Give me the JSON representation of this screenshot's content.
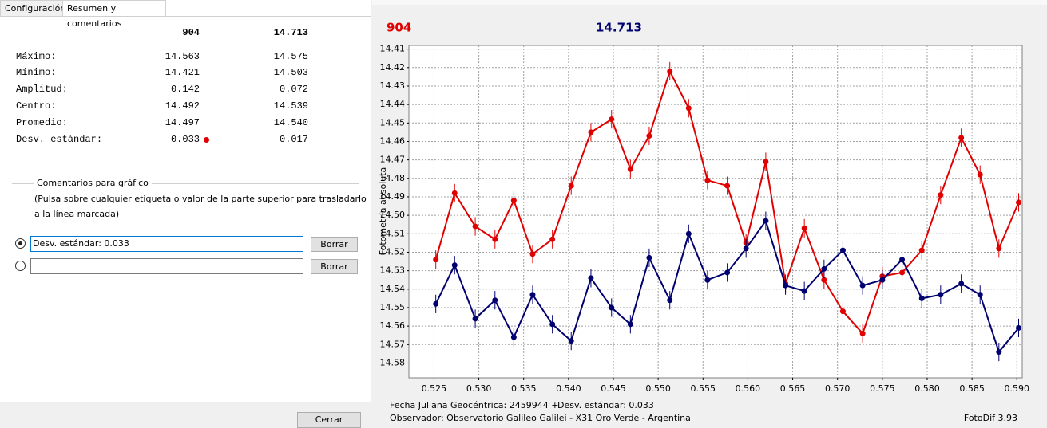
{
  "tabs": [
    "Configuración",
    "Resumen y comentarios"
  ],
  "summary": {
    "headers": [
      "904",
      "14.713"
    ],
    "rows": [
      {
        "label": "Máximo:",
        "values": [
          "14.563",
          "14.575"
        ]
      },
      {
        "label": "Mínimo:",
        "values": [
          "14.421",
          "14.503"
        ]
      },
      {
        "label": "Amplitud:",
        "values": [
          "0.142",
          "0.072"
        ]
      },
      {
        "label": "Centro:",
        "values": [
          "14.492",
          "14.539"
        ]
      },
      {
        "label": "Promedio:",
        "values": [
          "14.497",
          "14.540"
        ]
      },
      {
        "label": "Desv. estándar:",
        "values": [
          "0.033",
          "0.017"
        ]
      }
    ]
  },
  "comments": {
    "title": "Comentarios para gráfico",
    "help": [
      "(Pulsa sobre cualquier etiqueta o valor de la parte superior para trasladarlo",
      "a la línea marcada)"
    ],
    "lines": [
      {
        "text": "Desv. estándar: 0.033",
        "button": "Borrar"
      },
      {
        "button": "Borrar"
      }
    ]
  },
  "close_button": "Cerrar",
  "chart_data": {
    "type": "line",
    "y_label": "Fotometría absoluta",
    "footer": [
      "Fecha Juliana Geocéntrica: 2459944 +",
      "Desv. estándar: 0.033",
      "Observador: Observatorio Galileo Galilei - X31 Oro Verde - Argentina",
      "FotoDif 3.93"
    ],
    "x": [
      0.5252,
      0.5273,
      0.5296,
      0.5318,
      0.5339,
      0.536,
      0.5382,
      0.5403,
      0.5425,
      0.5448,
      0.5469,
      0.549,
      0.5513,
      0.5534,
      0.5555,
      0.5577,
      0.5598,
      0.562,
      0.5642,
      0.5663,
      0.5685,
      0.5706,
      0.5728,
      0.575,
      0.5772,
      0.5794,
      0.5815,
      0.5838,
      0.5859,
      0.588,
      0.5902
    ],
    "series": [
      {
        "name": "904",
        "color": "#e00000",
        "error": 0.005,
        "values": [
          14.524,
          14.488,
          14.506,
          14.513,
          14.492,
          14.521,
          14.513,
          14.484,
          14.455,
          14.448,
          14.475,
          14.457,
          14.422,
          14.442,
          14.481,
          14.484,
          14.515,
          14.471,
          14.537,
          14.507,
          14.535,
          14.552,
          14.564,
          14.533,
          14.531,
          14.519,
          14.489,
          14.458,
          14.478,
          14.518,
          14.493
        ]
      },
      {
        "name": "14.713",
        "color": "#000070",
        "error": 0.005,
        "values": [
          14.548,
          14.527,
          14.556,
          14.546,
          14.566,
          14.543,
          14.559,
          14.568,
          14.534,
          14.55,
          14.559,
          14.523,
          14.546,
          14.51,
          14.535,
          14.531,
          14.518,
          14.503,
          14.538,
          14.541,
          14.529,
          14.519,
          14.538,
          14.535,
          14.524,
          14.545,
          14.543,
          14.537,
          14.543,
          14.574,
          14.561
        ]
      }
    ],
    "xlim": [
      0.5222,
      0.5906
    ],
    "xticks": [
      0.525,
      {
        "value": 0.53,
        "label": "0.530"
      },
      0.535,
      {
        "value": 0.54,
        "label": "0.540"
      },
      0.545,
      {
        "value": 0.55,
        "label": "0.550"
      },
      0.555,
      {
        "value": 0.56,
        "label": "0.560"
      },
      0.565,
      {
        "value": 0.57,
        "label": "0.570"
      },
      0.575,
      {
        "value": 0.58,
        "label": "0.580"
      },
      0.585,
      {
        "value": 0.59,
        "label": "0.590"
      }
    ],
    "ylim": [
      14.408,
      14.588
    ],
    "y_reversed": true,
    "yticks": [
      14.41,
      14.42,
      14.43,
      14.44,
      14.45,
      14.46,
      14.47,
      14.48,
      14.49,
      {
        "value": 14.5,
        "label": "14.50"
      },
      14.51,
      14.52,
      14.53,
      14.54,
      14.55,
      14.56,
      14.57,
      14.58
    ],
    "grid": true
  }
}
